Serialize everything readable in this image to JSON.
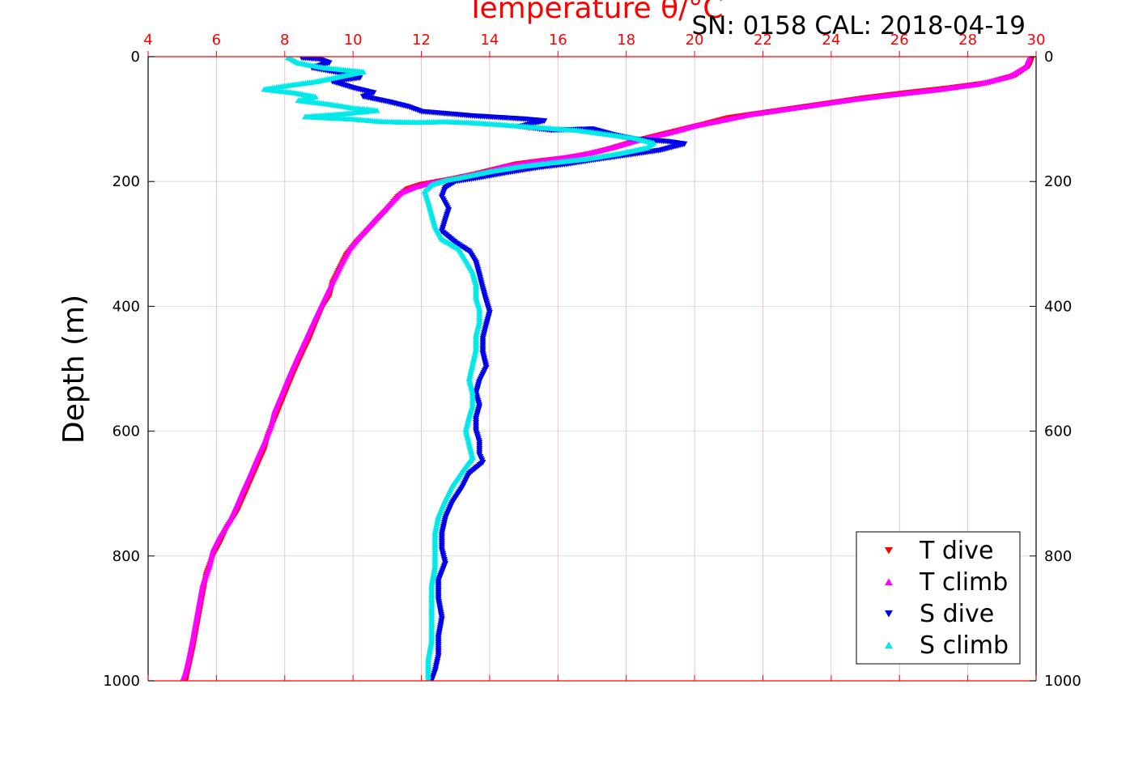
{
  "chart_data": {
    "type": "scatter",
    "title": "Temperature θ/°C",
    "annotation": "SN: 0158  CAL: 2018-04-19",
    "xlabel": "Temperature θ/°C",
    "ylabel": "Depth (m)",
    "xlim": [
      4,
      30
    ],
    "ylim": [
      1000,
      0
    ],
    "x_ticks": [
      4,
      6,
      8,
      10,
      12,
      14,
      16,
      18,
      20,
      22,
      24,
      26,
      28,
      30
    ],
    "y_ticks": [
      0,
      200,
      400,
      600,
      800,
      1000
    ],
    "grid": true,
    "legend_position": "bottom-right",
    "colors": {
      "t_dive": "#ff0000",
      "t_climb": "#ff00ff",
      "s_dive": "#0000e6",
      "s_climb": "#00e8e8",
      "axis_top": "#ff0000",
      "grid": "#e6b3c8"
    },
    "series": [
      {
        "name": "T dive",
        "marker": "triangle-down",
        "color": "#ff0000",
        "points": [
          [
            29.9,
            0
          ],
          [
            29.8,
            15
          ],
          [
            29.4,
            30
          ],
          [
            28.6,
            42
          ],
          [
            27.5,
            50
          ],
          [
            26.2,
            58
          ],
          [
            25.0,
            66
          ],
          [
            24.0,
            74
          ],
          [
            23.0,
            82
          ],
          [
            22.0,
            90
          ],
          [
            21.0,
            98
          ],
          [
            20.3,
            108
          ],
          [
            19.7,
            116
          ],
          [
            19.1,
            124
          ],
          [
            18.5,
            132
          ],
          [
            18.0,
            140
          ],
          [
            17.5,
            148
          ],
          [
            17.0,
            155
          ],
          [
            16.3,
            162
          ],
          [
            15.5,
            167
          ],
          [
            14.8,
            172
          ],
          [
            14.2,
            180
          ],
          [
            13.6,
            188
          ],
          [
            13.0,
            195
          ],
          [
            12.5,
            200
          ],
          [
            12.0,
            205
          ],
          [
            11.6,
            212
          ],
          [
            11.3,
            225
          ],
          [
            11.0,
            245
          ],
          [
            10.7,
            262
          ],
          [
            10.4,
            280
          ],
          [
            10.1,
            297
          ],
          [
            9.8,
            318
          ],
          [
            9.6,
            340
          ],
          [
            9.4,
            362
          ],
          [
            9.3,
            385
          ],
          [
            9.1,
            402
          ],
          [
            8.9,
            428
          ],
          [
            8.7,
            455
          ],
          [
            8.5,
            478
          ],
          [
            8.3,
            502
          ],
          [
            8.1,
            528
          ],
          [
            7.9,
            555
          ],
          [
            7.7,
            582
          ],
          [
            7.5,
            608
          ],
          [
            7.4,
            630
          ],
          [
            7.2,
            655
          ],
          [
            7.0,
            680
          ],
          [
            6.8,
            705
          ],
          [
            6.6,
            730
          ],
          [
            6.3,
            755
          ],
          [
            6.1,
            780
          ],
          [
            5.9,
            800
          ],
          [
            5.7,
            830
          ],
          [
            5.6,
            860
          ],
          [
            5.5,
            890
          ],
          [
            5.4,
            920
          ],
          [
            5.3,
            950
          ],
          [
            5.2,
            975
          ],
          [
            5.1,
            1000
          ]
        ]
      },
      {
        "name": "T climb",
        "marker": "triangle-up",
        "color": "#ff00ff",
        "points": [
          [
            29.8,
            2
          ],
          [
            29.7,
            16
          ],
          [
            29.2,
            32
          ],
          [
            28.3,
            44
          ],
          [
            27.1,
            53
          ],
          [
            25.8,
            61
          ],
          [
            24.6,
            69
          ],
          [
            23.6,
            77
          ],
          [
            22.6,
            85
          ],
          [
            21.6,
            93
          ],
          [
            20.8,
            102
          ],
          [
            20.0,
            111
          ],
          [
            19.4,
            120
          ],
          [
            18.8,
            128
          ],
          [
            18.2,
            136
          ],
          [
            17.7,
            144
          ],
          [
            17.2,
            151
          ],
          [
            16.6,
            158
          ],
          [
            15.9,
            164
          ],
          [
            15.2,
            169
          ],
          [
            14.5,
            175
          ],
          [
            13.9,
            184
          ],
          [
            13.3,
            191
          ],
          [
            12.8,
            197
          ],
          [
            12.2,
            203
          ],
          [
            11.8,
            209
          ],
          [
            11.4,
            218
          ],
          [
            11.1,
            235
          ],
          [
            10.8,
            252
          ],
          [
            10.5,
            270
          ],
          [
            10.2,
            288
          ],
          [
            9.9,
            308
          ],
          [
            9.7,
            328
          ],
          [
            9.5,
            350
          ],
          [
            9.3,
            372
          ],
          [
            9.1,
            395
          ],
          [
            8.9,
            418
          ],
          [
            8.7,
            442
          ],
          [
            8.5,
            466
          ],
          [
            8.3,
            490
          ],
          [
            8.1,
            515
          ],
          [
            7.9,
            542
          ],
          [
            7.7,
            568
          ],
          [
            7.6,
            592
          ],
          [
            7.4,
            618
          ],
          [
            7.2,
            642
          ],
          [
            7.0,
            668
          ],
          [
            6.8,
            692
          ],
          [
            6.6,
            718
          ],
          [
            6.4,
            742
          ],
          [
            6.1,
            768
          ],
          [
            5.9,
            790
          ],
          [
            5.8,
            815
          ],
          [
            5.6,
            845
          ],
          [
            5.5,
            875
          ],
          [
            5.4,
            905
          ],
          [
            5.3,
            935
          ],
          [
            5.2,
            962
          ],
          [
            5.1,
            985
          ],
          [
            5.0,
            1000
          ]
        ]
      },
      {
        "name": "S dive",
        "marker": "triangle-down",
        "color": "#0000e6",
        "points": [
          [
            8.5,
            2
          ],
          [
            9.0,
            4
          ],
          [
            9.3,
            10
          ],
          [
            8.8,
            18
          ],
          [
            9.6,
            26
          ],
          [
            10.2,
            34
          ],
          [
            9.4,
            40
          ],
          [
            10.0,
            50
          ],
          [
            10.6,
            58
          ],
          [
            10.3,
            64
          ],
          [
            11.0,
            72
          ],
          [
            11.6,
            80
          ],
          [
            12.0,
            88
          ],
          [
            13.5,
            95
          ],
          [
            15.0,
            100
          ],
          [
            15.6,
            103
          ],
          [
            14.9,
            112
          ],
          [
            15.8,
            118
          ],
          [
            17.0,
            116
          ],
          [
            17.6,
            125
          ],
          [
            18.2,
            132
          ],
          [
            19.2,
            136
          ],
          [
            19.7,
            140
          ],
          [
            19.0,
            150
          ],
          [
            18.0,
            158
          ],
          [
            17.1,
            165
          ],
          [
            16.3,
            172
          ],
          [
            15.4,
            178
          ],
          [
            14.5,
            186
          ],
          [
            13.7,
            194
          ],
          [
            13.0,
            200
          ],
          [
            12.7,
            210
          ],
          [
            12.6,
            225
          ],
          [
            12.8,
            245
          ],
          [
            12.7,
            262
          ],
          [
            12.6,
            280
          ],
          [
            13.0,
            298
          ],
          [
            13.4,
            312
          ],
          [
            13.6,
            330
          ],
          [
            13.7,
            350
          ],
          [
            13.8,
            372
          ],
          [
            13.9,
            392
          ],
          [
            14.0,
            410
          ],
          [
            13.9,
            430
          ],
          [
            13.8,
            452
          ],
          [
            13.8,
            475
          ],
          [
            13.9,
            498
          ],
          [
            13.7,
            520
          ],
          [
            13.6,
            540
          ],
          [
            13.7,
            560
          ],
          [
            13.6,
            580
          ],
          [
            13.6,
            600
          ],
          [
            13.7,
            618
          ],
          [
            13.7,
            638
          ],
          [
            13.8,
            650
          ],
          [
            13.4,
            668
          ],
          [
            13.2,
            690
          ],
          [
            12.9,
            715
          ],
          [
            12.7,
            740
          ],
          [
            12.6,
            765
          ],
          [
            12.6,
            790
          ],
          [
            12.7,
            812
          ],
          [
            12.5,
            840
          ],
          [
            12.5,
            870
          ],
          [
            12.6,
            900
          ],
          [
            12.5,
            930
          ],
          [
            12.5,
            960
          ],
          [
            12.4,
            985
          ],
          [
            12.3,
            1000
          ]
        ]
      },
      {
        "name": "S climb",
        "marker": "triangle-up",
        "color": "#00e8e8",
        "points": [
          [
            8.1,
            1
          ],
          [
            8.4,
            10
          ],
          [
            9.2,
            18
          ],
          [
            10.3,
            24
          ],
          [
            9.6,
            32
          ],
          [
            8.9,
            40
          ],
          [
            8.1,
            46
          ],
          [
            7.4,
            52
          ],
          [
            8.3,
            58
          ],
          [
            8.9,
            64
          ],
          [
            8.4,
            70
          ],
          [
            9.3,
            76
          ],
          [
            10.0,
            82
          ],
          [
            10.7,
            86
          ],
          [
            9.6,
            92
          ],
          [
            8.6,
            96
          ],
          [
            10.0,
            100
          ],
          [
            10.9,
            104
          ],
          [
            11.9,
            105
          ],
          [
            12.7,
            104
          ],
          [
            13.6,
            106
          ],
          [
            14.6,
            110
          ],
          [
            15.6,
            114
          ],
          [
            16.6,
            118
          ],
          [
            17.4,
            124
          ],
          [
            18.2,
            130
          ],
          [
            18.8,
            138
          ],
          [
            18.6,
            146
          ],
          [
            17.7,
            156
          ],
          [
            16.8,
            164
          ],
          [
            15.8,
            170
          ],
          [
            14.9,
            176
          ],
          [
            14.0,
            184
          ],
          [
            13.3,
            192
          ],
          [
            12.7,
            198
          ],
          [
            12.3,
            205
          ],
          [
            12.1,
            215
          ],
          [
            12.2,
            232
          ],
          [
            12.3,
            252
          ],
          [
            12.4,
            272
          ],
          [
            12.6,
            292
          ],
          [
            13.1,
            308
          ],
          [
            13.3,
            326
          ],
          [
            13.5,
            345
          ],
          [
            13.6,
            365
          ],
          [
            13.6,
            386
          ],
          [
            13.7,
            404
          ],
          [
            13.7,
            424
          ],
          [
            13.6,
            446
          ],
          [
            13.6,
            468
          ],
          [
            13.5,
            492
          ],
          [
            13.4,
            516
          ],
          [
            13.5,
            538
          ],
          [
            13.5,
            558
          ],
          [
            13.4,
            576
          ],
          [
            13.3,
            598
          ],
          [
            13.4,
            620
          ],
          [
            13.5,
            642
          ],
          [
            13.2,
            664
          ],
          [
            12.9,
            688
          ],
          [
            12.7,
            710
          ],
          [
            12.5,
            736
          ],
          [
            12.4,
            762
          ],
          [
            12.4,
            790
          ],
          [
            12.4,
            816
          ],
          [
            12.3,
            846
          ],
          [
            12.3,
            876
          ],
          [
            12.3,
            906
          ],
          [
            12.3,
            936
          ],
          [
            12.2,
            966
          ],
          [
            12.2,
            990
          ],
          [
            12.2,
            1000
          ]
        ]
      }
    ]
  }
}
